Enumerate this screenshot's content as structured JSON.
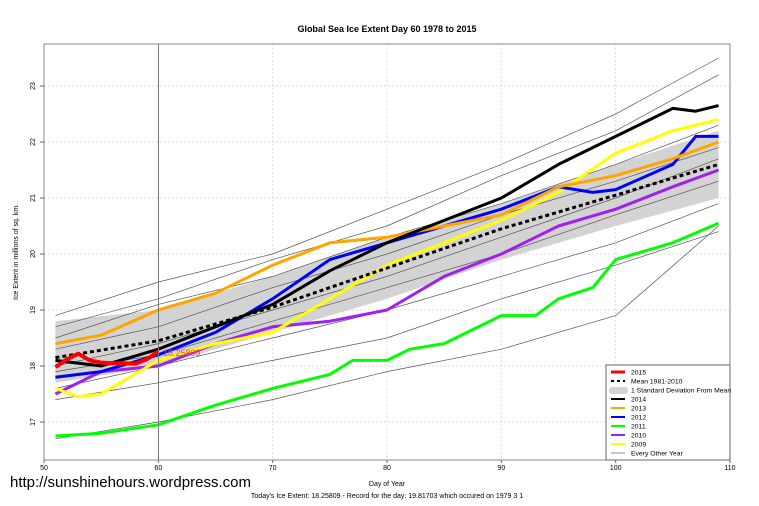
{
  "chart_data": {
    "type": "line",
    "title": "Global Sea Ice Extent Day 60 1978 to 2015",
    "xlabel": "Day of Year",
    "ylabel": "Ice Extent in millions of sq. km.",
    "xlim": [
      50,
      110
    ],
    "ylim": [
      16.6,
      23.8
    ],
    "xticks": [
      50,
      60,
      70,
      80,
      90,
      100,
      110
    ],
    "yticks": [
      17,
      18,
      19,
      20,
      21,
      22,
      23
    ],
    "grid": true,
    "legend_position": "bottom-right",
    "marker_day": 60,
    "annotation": "18.25809",
    "footer": "Today's Ice Extent: 18.25809  - Record for the day: 19.81703 which occured on 1979 3 1",
    "watermark": "http://sunshinehours.wordpress.com",
    "sd_band": {
      "name": "1 Standard Deviation From Mean",
      "color": "#d3d3d3",
      "x": [
        51,
        60,
        70,
        80,
        90,
        100,
        109
      ],
      "upper": [
        18.8,
        19.0,
        19.6,
        20.3,
        20.9,
        21.6,
        22.2
      ],
      "lower": [
        17.7,
        18.0,
        18.6,
        19.2,
        19.9,
        20.5,
        21.0
      ]
    },
    "other_years": {
      "name": "Every Other Year",
      "color": "#555555",
      "x": [
        51,
        60,
        70,
        80,
        90,
        100,
        109
      ],
      "series": [
        [
          18.9,
          19.5,
          20.0,
          20.8,
          21.6,
          22.5,
          23.5
        ],
        [
          18.7,
          19.2,
          19.9,
          20.5,
          21.4,
          22.2,
          23.2
        ],
        [
          18.5,
          19.1,
          19.6,
          20.3,
          20.9,
          21.6,
          22.3
        ],
        [
          18.3,
          18.7,
          19.4,
          20.0,
          20.7,
          21.3,
          21.9
        ],
        [
          18.0,
          18.4,
          19.0,
          19.6,
          20.3,
          21.0,
          21.7
        ],
        [
          17.9,
          18.2,
          18.8,
          19.4,
          20.0,
          20.7,
          21.3
        ],
        [
          17.6,
          18.0,
          18.5,
          19.0,
          19.6,
          20.2,
          20.9
        ],
        [
          17.4,
          17.7,
          18.1,
          18.5,
          19.2,
          19.8,
          20.4
        ],
        [
          16.7,
          17.0,
          17.4,
          17.9,
          18.3,
          18.9,
          20.5
        ]
      ]
    },
    "series": [
      {
        "name": "2015",
        "color": "#ff0000",
        "width": 4,
        "x": [
          51,
          52,
          53,
          54,
          55,
          56,
          57,
          58,
          59,
          60
        ],
        "values": [
          17.98,
          18.12,
          18.22,
          18.1,
          18.06,
          18.05,
          18.05,
          18.04,
          18.12,
          18.26
        ]
      },
      {
        "name": "Mean 1981-2010",
        "color": "#000000",
        "width": 3,
        "dashed": true,
        "x": [
          51,
          60,
          70,
          80,
          90,
          100,
          109
        ],
        "values": [
          18.15,
          18.45,
          19.05,
          19.75,
          20.45,
          21.05,
          21.6
        ]
      },
      {
        "name": "2014",
        "color": "#000000",
        "width": 3,
        "x": [
          51,
          55,
          60,
          65,
          70,
          75,
          80,
          85,
          90,
          95,
          100,
          105,
          107,
          109
        ],
        "values": [
          18.1,
          18.0,
          18.3,
          18.7,
          19.1,
          19.7,
          20.2,
          20.6,
          21.0,
          21.6,
          22.1,
          22.6,
          22.55,
          22.65
        ]
      },
      {
        "name": "2013",
        "color": "#ffa500",
        "width": 3,
        "x": [
          51,
          55,
          60,
          65,
          70,
          75,
          80,
          85,
          90,
          95,
          100,
          105,
          109
        ],
        "values": [
          18.4,
          18.55,
          19.0,
          19.3,
          19.8,
          20.2,
          20.3,
          20.5,
          20.7,
          21.2,
          21.4,
          21.7,
          22.0
        ]
      },
      {
        "name": "2012",
        "color": "#0000ff",
        "width": 3,
        "x": [
          51,
          55,
          60,
          65,
          70,
          75,
          80,
          85,
          90,
          95,
          98,
          100,
          105,
          107,
          109
        ],
        "values": [
          17.8,
          17.9,
          18.2,
          18.6,
          19.2,
          19.9,
          20.2,
          20.5,
          20.8,
          21.2,
          21.1,
          21.15,
          21.6,
          22.1,
          22.1
        ]
      },
      {
        "name": "2011",
        "color": "#00ff00",
        "width": 3,
        "x": [
          51,
          55,
          60,
          65,
          70,
          75,
          77,
          80,
          82,
          85,
          90,
          93,
          95,
          98,
          100,
          105,
          109
        ],
        "values": [
          16.75,
          16.8,
          16.95,
          17.3,
          17.6,
          17.85,
          18.1,
          18.1,
          18.3,
          18.4,
          18.9,
          18.9,
          19.2,
          19.4,
          19.9,
          20.2,
          20.55
        ]
      },
      {
        "name": "2010",
        "color": "#a020f0",
        "width": 3,
        "x": [
          51,
          55,
          60,
          65,
          70,
          75,
          80,
          85,
          90,
          95,
          100,
          105,
          109
        ],
        "values": [
          17.5,
          17.9,
          18.0,
          18.4,
          18.7,
          18.8,
          19.0,
          19.6,
          20.0,
          20.5,
          20.8,
          21.2,
          21.5
        ]
      },
      {
        "name": "2009",
        "color": "#ffff00",
        "width": 3,
        "x": [
          51,
          53,
          55,
          60,
          65,
          70,
          75,
          80,
          85,
          90,
          95,
          100,
          105,
          109
        ],
        "values": [
          17.6,
          17.45,
          17.5,
          18.1,
          18.4,
          18.6,
          19.2,
          19.8,
          20.2,
          20.6,
          21.1,
          21.8,
          22.2,
          22.4
        ]
      }
    ],
    "legend": [
      "2015",
      "Mean 1981-2010",
      "1 Standard Deviation From Mean",
      "2014",
      "2013",
      "2012",
      "2011",
      "2010",
      "2009",
      "Every Other Year"
    ]
  }
}
